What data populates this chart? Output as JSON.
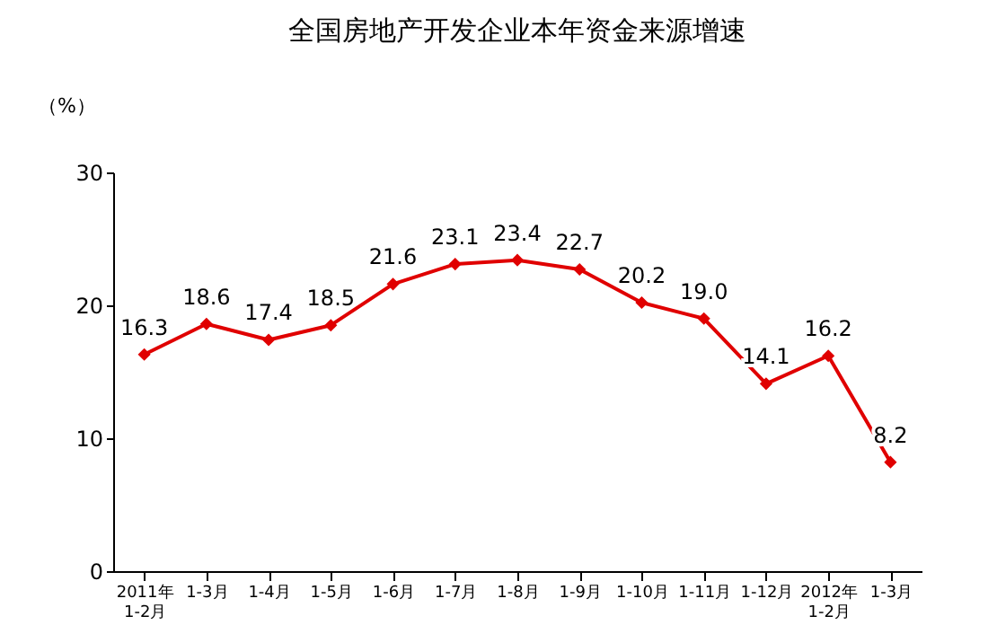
{
  "chart_data": {
    "type": "line",
    "title": "全国房地产开发企业本年资金来源增速",
    "ylabel": "（%）",
    "categories": [
      "2011年\n1-2月",
      "1-3月",
      "1-4月",
      "1-5月",
      "1-6月",
      "1-7月",
      "1-8月",
      "1-9月",
      "1-10月",
      "1-11月",
      "1-12月",
      "2012年\n1-2月",
      "1-3月"
    ],
    "series": [
      {
        "color": "#e00000",
        "values": [
          16.3,
          18.6,
          17.4,
          18.5,
          21.6,
          23.1,
          23.4,
          22.7,
          20.2,
          19.0,
          14.1,
          16.2,
          8.2
        ],
        "value_labels": [
          "16.3",
          "18.6",
          "17.4",
          "18.5",
          "21.6",
          "23.1",
          "23.4",
          "22.7",
          "20.2",
          "19.0",
          "14.1",
          "16.2",
          "8.2"
        ]
      }
    ],
    "ylim": [
      0,
      30
    ],
    "yticks": [
      0,
      10,
      20,
      30
    ],
    "grid": false,
    "marker": "diamond",
    "line_style": "solid"
  }
}
